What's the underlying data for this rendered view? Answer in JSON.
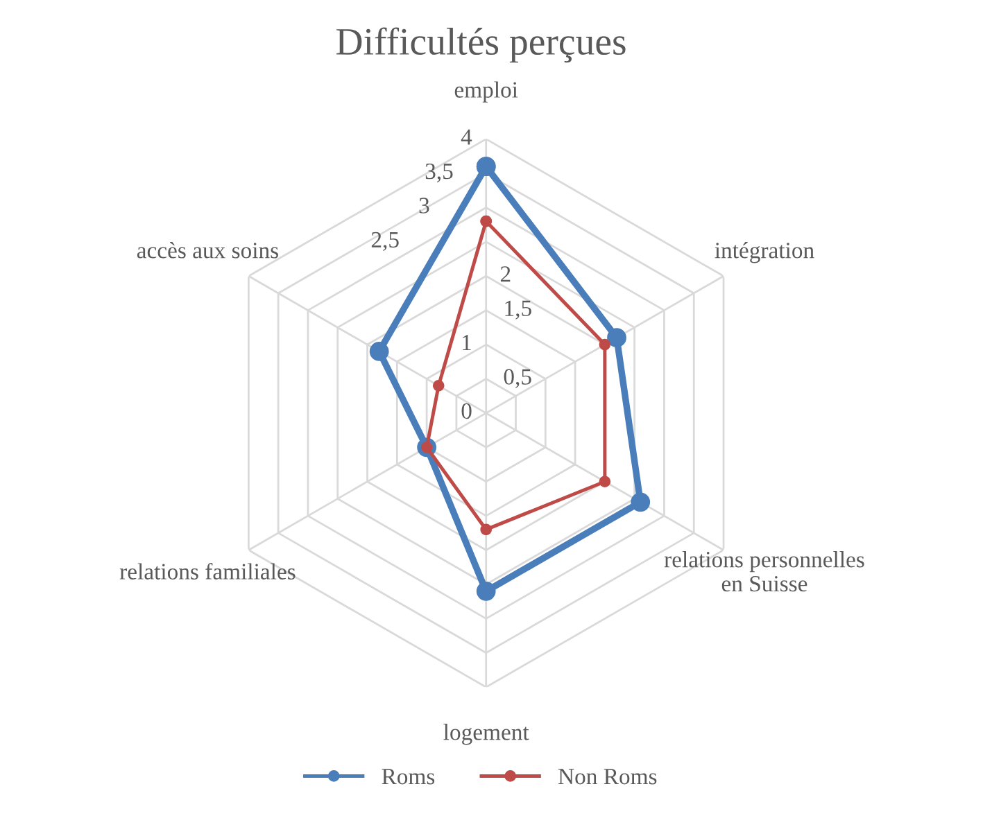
{
  "chart_data": {
    "type": "radar",
    "title": "Difficultés perçues",
    "categories": [
      "emploi",
      "intégration",
      "relations personnelles\nen Suisse",
      "logement",
      "relations familiales",
      "accès aux soins"
    ],
    "series": [
      {
        "name": "Roms",
        "color": "#4a7ebb",
        "values": [
          3.6,
          2.2,
          2.6,
          2.6,
          1.0,
          1.8
        ]
      },
      {
        "name": "Non Roms",
        "color": "#be4b48",
        "values": [
          2.8,
          2.0,
          2.0,
          1.7,
          1.0,
          0.8
        ]
      }
    ],
    "ylim": [
      0,
      4
    ],
    "yticks": [
      0,
      {
        "value": 0.5,
        "label": "0,5"
      },
      1,
      {
        "value": 1.5,
        "label": "1,5"
      },
      2,
      {
        "value": 2.5,
        "label": "2,5"
      },
      3,
      {
        "value": 3.5,
        "label": "3,5"
      },
      4
    ],
    "grid": true,
    "legend": "bottom",
    "marker": "circle",
    "line_style": "solid"
  }
}
